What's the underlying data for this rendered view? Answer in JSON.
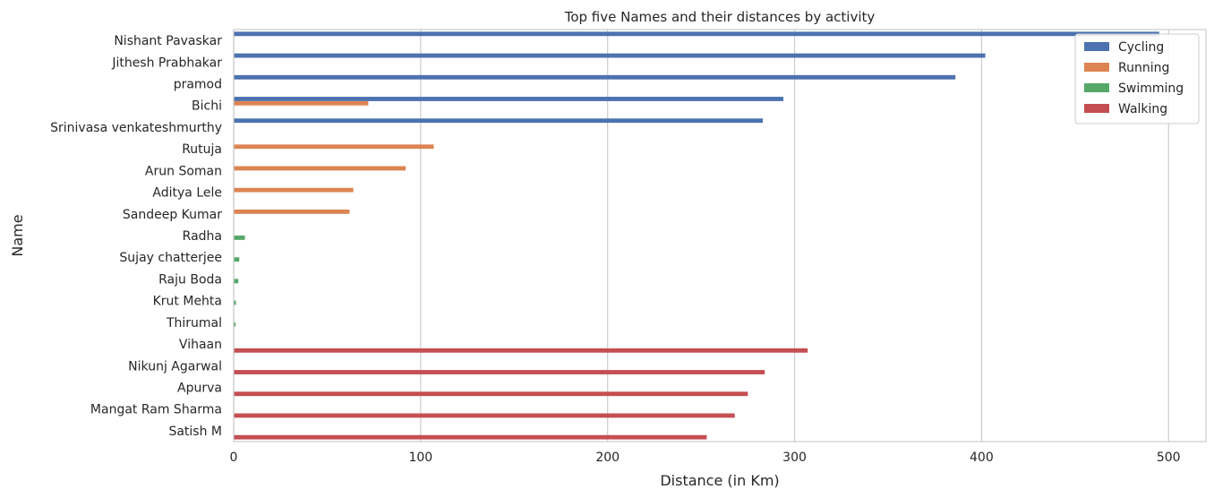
{
  "chart_data": {
    "type": "bar",
    "orientation": "horizontal",
    "title": "Top five Names and their distances by activity",
    "xlabel": "Distance (in Km)",
    "ylabel": "Name",
    "xlim": [
      0,
      520
    ],
    "xticks": [
      0,
      100,
      200,
      300,
      400,
      500
    ],
    "grid": true,
    "legend_position": "top-right",
    "categories": [
      "Nishant Pavaskar",
      "Jithesh Prabhakar ",
      "pramod ",
      "Bichi",
      "Srinivasa venkateshmurthy ",
      "Rutuja",
      "Arun Soman",
      "Aditya Lele",
      "Sandeep Kumar",
      "Radha",
      "Sujay chatterjee",
      "Raju Boda",
      "Krut Mehta",
      "Thirumal",
      "Vihaan",
      "Nikunj Agarwal",
      "Apurva",
      "Mangat Ram Sharma",
      "Satish M"
    ],
    "series": [
      {
        "name": "Cycling",
        "color": "#4c72b0",
        "values": [
          495,
          402,
          386,
          294,
          283,
          null,
          null,
          null,
          null,
          null,
          null,
          null,
          null,
          null,
          null,
          null,
          null,
          null,
          null
        ]
      },
      {
        "name": "Running",
        "color": "#dd8452",
        "values": [
          null,
          null,
          null,
          72,
          null,
          107,
          92,
          64,
          62,
          null,
          null,
          null,
          null,
          null,
          null,
          null,
          null,
          null,
          null
        ]
      },
      {
        "name": "Swimming",
        "color": "#55a868",
        "values": [
          null,
          null,
          null,
          null,
          null,
          null,
          null,
          null,
          null,
          6,
          3,
          2.5,
          1.2,
          1,
          null,
          null,
          null,
          null,
          null
        ]
      },
      {
        "name": "Walking",
        "color": "#c44e52",
        "values": [
          null,
          null,
          null,
          null,
          null,
          null,
          null,
          null,
          null,
          null,
          null,
          null,
          null,
          null,
          307,
          284,
          275,
          268,
          253
        ]
      }
    ]
  }
}
